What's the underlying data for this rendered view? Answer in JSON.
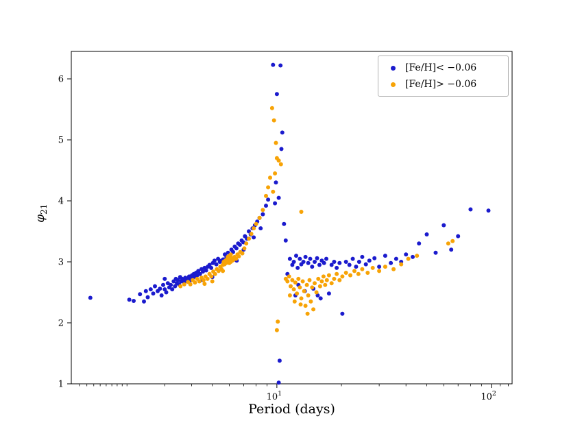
{
  "figure": {
    "background": "#ffffff"
  },
  "chart_data": {
    "type": "scatter",
    "title": "",
    "xlabel": "Period (days)",
    "ylabel": {
      "base": "φ",
      "sub": "21"
    },
    "xscale": "log",
    "xlim": [
      1.1,
      125
    ],
    "ylim": [
      1,
      6.45
    ],
    "yticks": [
      1,
      2,
      3,
      4,
      5,
      6
    ],
    "xticks_major": [
      {
        "value": 10,
        "base": "10",
        "exp": "1"
      },
      {
        "value": 100,
        "base": "10",
        "exp": "2"
      }
    ],
    "xticks_minor": [
      1.2,
      1.3,
      1.4,
      1.5,
      1.6,
      1.7,
      1.8,
      1.9,
      2,
      3,
      4,
      5,
      6,
      7,
      8,
      9,
      20,
      30,
      40,
      50,
      60,
      70,
      80,
      90,
      110,
      120
    ],
    "grid": false,
    "legend": {
      "position": "upper right",
      "entries": [
        {
          "label": "[Fe/H]< −0.06",
          "color": "#1b1bcd"
        },
        {
          "label": "[Fe/H]> −0.06",
          "color": "#f7a306"
        }
      ]
    },
    "marker": {
      "shape": "circle",
      "radius": 3
    },
    "series": [
      {
        "name": "[Fe/H]< −0.06",
        "color": "#1b1bcd",
        "points": [
          [
            1.35,
            2.41
          ],
          [
            2.05,
            2.38
          ],
          [
            2.15,
            2.36
          ],
          [
            2.3,
            2.47
          ],
          [
            2.45,
            2.52
          ],
          [
            2.5,
            2.42
          ],
          [
            2.58,
            2.55
          ],
          [
            2.65,
            2.48
          ],
          [
            2.7,
            2.6
          ],
          [
            2.78,
            2.52
          ],
          [
            2.85,
            2.56
          ],
          [
            2.9,
            2.45
          ],
          [
            2.95,
            2.62
          ],
          [
            3.0,
            2.55
          ],
          [
            3.05,
            2.5
          ],
          [
            3.1,
            2.65
          ],
          [
            3.15,
            2.58
          ],
          [
            3.2,
            2.62
          ],
          [
            3.25,
            2.55
          ],
          [
            3.3,
            2.68
          ],
          [
            3.35,
            2.6
          ],
          [
            3.38,
            2.72
          ],
          [
            3.42,
            2.65
          ],
          [
            3.46,
            2.7
          ],
          [
            3.5,
            2.63
          ],
          [
            3.54,
            2.75
          ],
          [
            3.58,
            2.68
          ],
          [
            3.62,
            2.72
          ],
          [
            3.66,
            2.7
          ],
          [
            3.7,
            2.66
          ],
          [
            3.74,
            2.74
          ],
          [
            3.78,
            2.7
          ],
          [
            3.82,
            2.72
          ],
          [
            3.86,
            2.68
          ],
          [
            3.9,
            2.76
          ],
          [
            3.94,
            2.72
          ],
          [
            3.98,
            2.7
          ],
          [
            4.02,
            2.78
          ],
          [
            4.06,
            2.74
          ],
          [
            4.1,
            2.8
          ],
          [
            4.15,
            2.76
          ],
          [
            4.2,
            2.82
          ],
          [
            4.25,
            2.78
          ],
          [
            4.3,
            2.85
          ],
          [
            4.38,
            2.8
          ],
          [
            4.45,
            2.88
          ],
          [
            4.52,
            2.84
          ],
          [
            4.6,
            2.9
          ],
          [
            4.68,
            2.86
          ],
          [
            4.76,
            2.92
          ],
          [
            4.85,
            2.95
          ],
          [
            4.94,
            2.9
          ],
          [
            5.03,
            2.98
          ],
          [
            5.12,
            3.02
          ],
          [
            5.22,
            2.96
          ],
          [
            5.32,
            3.05
          ],
          [
            5.42,
            3.0
          ],
          [
            5.52,
            3.02
          ],
          [
            5.62,
            3.04
          ],
          [
            5.72,
            3.12
          ],
          [
            5.82,
            3.08
          ],
          [
            5.92,
            3.15
          ],
          [
            6.03,
            3.1
          ],
          [
            6.14,
            3.2
          ],
          [
            6.25,
            3.16
          ],
          [
            6.36,
            3.25
          ],
          [
            6.48,
            3.22
          ],
          [
            6.6,
            3.3
          ],
          [
            6.72,
            3.28
          ],
          [
            6.85,
            3.35
          ],
          [
            6.98,
            3.32
          ],
          [
            7.1,
            3.42
          ],
          [
            7.25,
            3.38
          ],
          [
            7.4,
            3.5
          ],
          [
            7.55,
            3.45
          ],
          [
            7.7,
            3.55
          ],
          [
            7.9,
            3.6
          ],
          [
            8.1,
            3.66
          ],
          [
            8.3,
            3.72
          ],
          [
            8.6,
            3.78
          ],
          [
            8.9,
            3.92
          ],
          [
            9.1,
            4.02
          ],
          [
            2.4,
            2.35
          ],
          [
            5.0,
            2.75
          ],
          [
            6.5,
            3.02
          ],
          [
            4.5,
            2.7
          ],
          [
            3.0,
            2.72
          ],
          [
            7.0,
            3.2
          ],
          [
            7.8,
            3.4
          ],
          [
            8.4,
            3.55
          ],
          [
            9.6,
            6.23
          ],
          [
            10.4,
            6.22
          ],
          [
            10.0,
            5.75
          ],
          [
            10.6,
            5.12
          ],
          [
            10.5,
            4.85
          ],
          [
            9.9,
            4.3
          ],
          [
            10.2,
            4.05
          ],
          [
            9.8,
            3.96
          ],
          [
            10.8,
            3.62
          ],
          [
            11.0,
            3.35
          ],
          [
            10.3,
            1.38
          ],
          [
            10.2,
            1.02
          ],
          [
            11.5,
            3.05
          ],
          [
            11.8,
            2.95
          ],
          [
            12.0,
            3.0
          ],
          [
            12.3,
            3.1
          ],
          [
            12.5,
            2.9
          ],
          [
            12.8,
            3.05
          ],
          [
            13.0,
            2.96
          ],
          [
            13.3,
            3.0
          ],
          [
            13.6,
            3.08
          ],
          [
            14.0,
            2.98
          ],
          [
            14.3,
            3.05
          ],
          [
            14.6,
            2.92
          ],
          [
            15.0,
            3.0
          ],
          [
            15.4,
            3.06
          ],
          [
            15.8,
            2.95
          ],
          [
            16.2,
            3.02
          ],
          [
            16.6,
            2.98
          ],
          [
            17.0,
            3.05
          ],
          [
            17.5,
            2.48
          ],
          [
            18.0,
            2.95
          ],
          [
            18.5,
            3.0
          ],
          [
            19.0,
            2.9
          ],
          [
            19.6,
            2.98
          ],
          [
            20.2,
            2.15
          ],
          [
            21.0,
            3.0
          ],
          [
            21.8,
            2.95
          ],
          [
            22.6,
            3.05
          ],
          [
            23.4,
            2.92
          ],
          [
            24.2,
            3.0
          ],
          [
            25.0,
            3.08
          ],
          [
            26.0,
            2.96
          ],
          [
            27.0,
            3.02
          ],
          [
            28.5,
            3.06
          ],
          [
            30.0,
            2.92
          ],
          [
            32.0,
            3.1
          ],
          [
            34.0,
            2.98
          ],
          [
            36.0,
            3.05
          ],
          [
            38.0,
            3.0
          ],
          [
            40.0,
            3.12
          ],
          [
            43.0,
            3.08
          ],
          [
            46.0,
            3.3
          ],
          [
            50.0,
            3.45
          ],
          [
            55.0,
            3.15
          ],
          [
            60.0,
            3.6
          ],
          [
            65.0,
            3.2
          ],
          [
            70.0,
            3.42
          ],
          [
            80.0,
            3.86
          ],
          [
            97.0,
            3.84
          ],
          [
            12.2,
            2.45
          ],
          [
            13.5,
            2.52
          ],
          [
            15.5,
            2.45
          ],
          [
            16.0,
            2.4
          ],
          [
            14.8,
            2.56
          ],
          [
            12.6,
            2.62
          ],
          [
            11.2,
            2.8
          ]
        ]
      },
      {
        "name": "[Fe/H]> −0.06",
        "color": "#f7a306",
        "points": [
          [
            3.55,
            2.6
          ],
          [
            3.7,
            2.63
          ],
          [
            3.85,
            2.67
          ],
          [
            3.95,
            2.63
          ],
          [
            4.05,
            2.7
          ],
          [
            4.15,
            2.66
          ],
          [
            4.25,
            2.72
          ],
          [
            4.35,
            2.68
          ],
          [
            4.45,
            2.74
          ],
          [
            4.55,
            2.7
          ],
          [
            4.65,
            2.76
          ],
          [
            4.75,
            2.72
          ],
          [
            4.85,
            2.8
          ],
          [
            4.95,
            2.76
          ],
          [
            5.05,
            2.84
          ],
          [
            5.15,
            2.8
          ],
          [
            5.25,
            2.88
          ],
          [
            5.35,
            2.85
          ],
          [
            5.45,
            2.92
          ],
          [
            5.52,
            2.88
          ],
          [
            5.6,
            2.95
          ],
          [
            5.65,
            3.0
          ],
          [
            5.7,
            2.96
          ],
          [
            5.75,
            3.02
          ],
          [
            5.8,
            2.98
          ],
          [
            5.85,
            3.04
          ],
          [
            5.9,
            3.0
          ],
          [
            5.95,
            3.02
          ],
          [
            6.0,
            2.98
          ],
          [
            6.05,
            3.05
          ],
          [
            6.1,
            3.0
          ],
          [
            6.18,
            3.06
          ],
          [
            6.26,
            3.03
          ],
          [
            6.35,
            3.08
          ],
          [
            6.45,
            3.05
          ],
          [
            6.55,
            3.12
          ],
          [
            6.65,
            3.09
          ],
          [
            6.75,
            3.16
          ],
          [
            6.9,
            3.14
          ],
          [
            7.05,
            3.22
          ],
          [
            7.2,
            3.3
          ],
          [
            7.4,
            3.38
          ],
          [
            7.6,
            3.46
          ],
          [
            7.8,
            3.55
          ],
          [
            8.0,
            3.62
          ],
          [
            8.3,
            3.72
          ],
          [
            8.6,
            3.85
          ],
          [
            8.9,
            4.08
          ],
          [
            9.1,
            4.22
          ],
          [
            9.3,
            4.38
          ],
          [
            6.0,
            3.1
          ],
          [
            6.1,
            3.12
          ],
          [
            5.9,
            3.08
          ],
          [
            6.2,
            3.02
          ],
          [
            5.6,
            2.85
          ],
          [
            5.0,
            2.68
          ],
          [
            4.6,
            2.64
          ],
          [
            9.5,
            5.52
          ],
          [
            9.7,
            5.32
          ],
          [
            9.9,
            4.95
          ],
          [
            10.0,
            4.7
          ],
          [
            10.2,
            4.66
          ],
          [
            10.45,
            4.6
          ],
          [
            9.8,
            4.45
          ],
          [
            10.0,
            1.88
          ],
          [
            10.1,
            2.02
          ],
          [
            9.6,
            4.15
          ],
          [
            13.0,
            3.82
          ],
          [
            11.0,
            2.72
          ],
          [
            11.2,
            2.68
          ],
          [
            11.4,
            2.76
          ],
          [
            11.6,
            2.6
          ],
          [
            11.8,
            2.7
          ],
          [
            12.0,
            2.55
          ],
          [
            12.2,
            2.66
          ],
          [
            12.4,
            2.48
          ],
          [
            12.6,
            2.72
          ],
          [
            12.8,
            2.58
          ],
          [
            13.0,
            2.4
          ],
          [
            13.2,
            2.68
          ],
          [
            13.4,
            2.52
          ],
          [
            13.6,
            2.28
          ],
          [
            13.8,
            2.62
          ],
          [
            14.0,
            2.45
          ],
          [
            14.2,
            2.7
          ],
          [
            14.4,
            2.35
          ],
          [
            14.6,
            2.58
          ],
          [
            14.8,
            2.22
          ],
          [
            15.0,
            2.65
          ],
          [
            15.3,
            2.5
          ],
          [
            15.6,
            2.72
          ],
          [
            15.9,
            2.6
          ],
          [
            16.2,
            2.68
          ],
          [
            16.5,
            2.76
          ],
          [
            16.8,
            2.62
          ],
          [
            17.1,
            2.7
          ],
          [
            17.5,
            2.78
          ],
          [
            18.0,
            2.65
          ],
          [
            18.5,
            2.72
          ],
          [
            19.0,
            2.8
          ],
          [
            19.6,
            2.7
          ],
          [
            20.2,
            2.76
          ],
          [
            21.0,
            2.82
          ],
          [
            22.0,
            2.78
          ],
          [
            23.0,
            2.85
          ],
          [
            24.0,
            2.8
          ],
          [
            25.0,
            2.88
          ],
          [
            26.5,
            2.82
          ],
          [
            28.0,
            2.9
          ],
          [
            30.0,
            2.85
          ],
          [
            32.0,
            2.92
          ],
          [
            35.0,
            2.88
          ],
          [
            38.0,
            2.96
          ],
          [
            41.0,
            3.05
          ],
          [
            45.0,
            3.1
          ],
          [
            63.0,
            3.3
          ],
          [
            66.0,
            3.34
          ],
          [
            12.1,
            2.35
          ],
          [
            12.9,
            2.3
          ],
          [
            13.9,
            2.15
          ],
          [
            11.5,
            2.45
          ]
        ]
      }
    ]
  }
}
